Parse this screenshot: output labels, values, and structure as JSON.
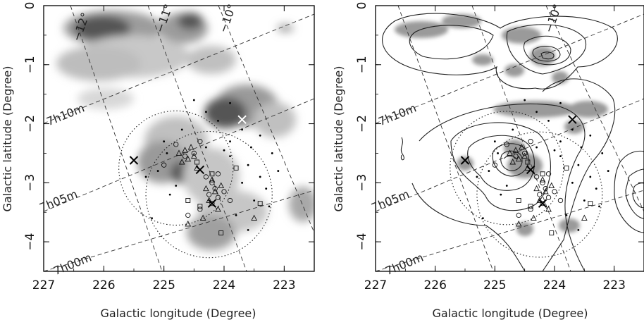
{
  "chart_data": [
    {
      "type": "scatter",
      "panel": "left",
      "background": "grayscale extinction map",
      "xlabel": "Galactic longitude (Degree)",
      "ylabel": "Galactic latitude (Degree)",
      "xlim": [
        227,
        222.5
      ],
      "ylim": [
        -4.5,
        0
      ],
      "xticks": [
        "227",
        "226",
        "225",
        "224",
        "223"
      ],
      "yticks": [
        "0",
        "−1",
        "−2",
        "−3",
        "−4"
      ],
      "grid_labels": [
        {
          "text": "−12°",
          "kind": "dec"
        },
        {
          "text": "−11°",
          "kind": "dec"
        },
        {
          "text": "−10°",
          "kind": "dec"
        },
        {
          "text": "7h10m",
          "kind": "ra"
        },
        {
          "text": "7h05m",
          "kind": "ra"
        },
        {
          "text": "7h00m",
          "kind": "ra"
        }
      ],
      "crosses": [
        {
          "l": 225.5,
          "b": -2.62,
          "color": "#000000"
        },
        {
          "l": 224.4,
          "b": -2.78,
          "color": "#000000"
        },
        {
          "l": 224.2,
          "b": -3.35,
          "color": "#000000"
        },
        {
          "l": 223.7,
          "b": -1.93,
          "color": "#ffffff"
        }
      ],
      "circles": [
        {
          "l": 224.8,
          "b": -2.75,
          "r": 0.95
        },
        {
          "l": 224.25,
          "b": -3.2,
          "r": 1.05
        }
      ]
    },
    {
      "type": "scatter",
      "panel": "right",
      "background": "contour map with gray regions",
      "xlabel": "Galactic longitude (Degree)",
      "ylabel": "Galactic latitude (Degree)",
      "xlim": [
        227,
        222.5
      ],
      "ylim": [
        -4.5,
        0
      ],
      "xticks": [
        "227",
        "226",
        "225",
        "224",
        "223"
      ],
      "yticks": [
        "0",
        "−1",
        "−2",
        "−3",
        "−4"
      ],
      "grid_labels": [
        {
          "text": "−10°",
          "kind": "dec"
        },
        {
          "text": "7h10m",
          "kind": "ra"
        },
        {
          "text": "7h05m",
          "kind": "ra"
        },
        {
          "text": "7h00m",
          "kind": "ra"
        }
      ],
      "crosses": [
        {
          "l": 225.5,
          "b": -2.62,
          "color": "#000000"
        },
        {
          "l": 224.4,
          "b": -2.78,
          "color": "#000000"
        },
        {
          "l": 224.2,
          "b": -3.35,
          "color": "#000000"
        },
        {
          "l": 223.7,
          "b": -1.93,
          "color": "#000000"
        }
      ],
      "circles": [
        {
          "l": 224.8,
          "b": -2.75,
          "r": 0.95
        },
        {
          "l": 224.25,
          "b": -3.2,
          "r": 1.05
        }
      ]
    }
  ],
  "objects": {
    "triangles": [
      [
        224.75,
        -2.5
      ],
      [
        224.65,
        -2.45
      ],
      [
        224.6,
        -2.6
      ],
      [
        224.7,
        -2.65
      ],
      [
        224.5,
        -2.55
      ],
      [
        224.55,
        -2.4
      ],
      [
        224.45,
        -2.75
      ],
      [
        224.3,
        -3.1
      ],
      [
        224.25,
        -3.3
      ],
      [
        224.1,
        -3.45
      ],
      [
        224.35,
        -3.6
      ],
      [
        224.6,
        -3.7
      ],
      [
        224.2,
        -2.95
      ],
      [
        223.5,
        -3.6
      ],
      [
        224.15,
        -3.15
      ],
      [
        224.05,
        -3.05
      ]
    ],
    "open_circles": [
      [
        224.8,
        -2.35
      ],
      [
        224.65,
        -2.55
      ],
      [
        224.5,
        -2.5
      ],
      [
        224.3,
        -2.9
      ],
      [
        224.2,
        -3.0
      ],
      [
        224.15,
        -3.1
      ],
      [
        224.25,
        -3.2
      ],
      [
        224.1,
        -3.25
      ],
      [
        224.2,
        -3.35
      ],
      [
        223.9,
        -3.3
      ],
      [
        224.4,
        -3.45
      ],
      [
        224.6,
        -3.55
      ],
      [
        225.0,
        -2.7
      ],
      [
        224.4,
        -2.3
      ],
      [
        224.1,
        -2.85
      ],
      [
        224.0,
        -3.15
      ]
    ],
    "squares": [
      [
        224.45,
        -2.65
      ],
      [
        224.2,
        -2.85
      ],
      [
        224.4,
        -3.4
      ],
      [
        223.4,
        -3.35
      ],
      [
        224.05,
        -3.85
      ],
      [
        224.6,
        -3.3
      ],
      [
        223.8,
        -2.75
      ]
    ],
    "dots": [
      [
        224.3,
        -2.4
      ],
      [
        223.9,
        -2.55
      ],
      [
        223.6,
        -2.7
      ],
      [
        223.4,
        -2.9
      ],
      [
        223.7,
        -3.0
      ],
      [
        223.3,
        -3.1
      ],
      [
        223.5,
        -3.3
      ],
      [
        223.9,
        -2.3
      ],
      [
        223.2,
        -2.5
      ],
      [
        224.9,
        -3.2
      ],
      [
        225.1,
        -2.8
      ],
      [
        225.2,
        -3.6
      ],
      [
        224.8,
        -3.05
      ],
      [
        223.8,
        -3.55
      ],
      [
        224.0,
        -2.45
      ],
      [
        223.55,
        -2.4
      ],
      [
        225.3,
        -2.9
      ],
      [
        223.1,
        -2.8
      ],
      [
        224.5,
        -1.6
      ],
      [
        224.3,
        -1.8
      ],
      [
        223.9,
        -1.65
      ],
      [
        224.1,
        -1.95
      ],
      [
        223.7,
        -2.1
      ],
      [
        224.7,
        -2.1
      ],
      [
        225.0,
        -2.3
      ],
      [
        223.6,
        -3.8
      ],
      [
        223.4,
        -2.2
      ],
      [
        224.95,
        -2.5
      ],
      [
        223.25,
        -3.4
      ]
    ]
  }
}
